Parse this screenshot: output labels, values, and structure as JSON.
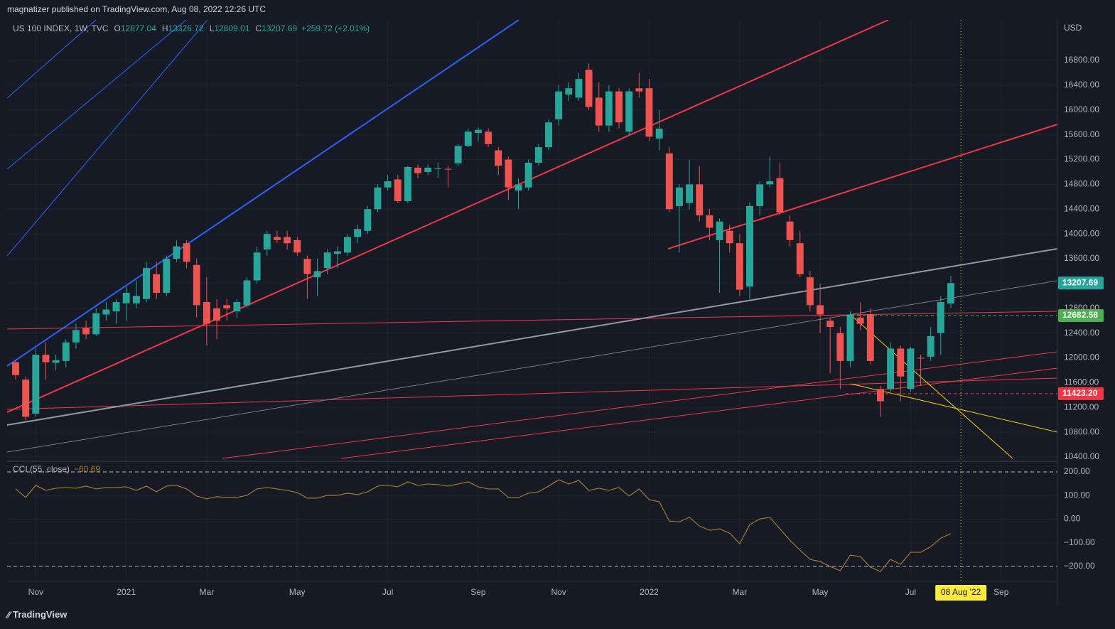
{
  "header": {
    "publisher": "magnatizer published on TradingView.com, Aug 08, 2022 12:26 UTC"
  },
  "footer": {
    "brand": "TradingView"
  },
  "chart_data": [
    {
      "type": "candlestick",
      "title": "US 100 INDEX, 1W, TVC",
      "ohlc_letters": [
        "O",
        "H",
        "L",
        "C"
      ],
      "change": "+259.72 (+2.01%)",
      "currency": "USD",
      "up_color": "#26a69a",
      "down_color": "#ef5350",
      "grid": true,
      "xlim": [
        -0.85,
        103.6
      ],
      "ylim": [
        10343,
        17454
      ],
      "yticks": [
        {
          "value": 10400,
          "label": "10400.00"
        },
        {
          "value": 10800,
          "label": "10800.00"
        },
        {
          "value": 11200,
          "label": "11200.00"
        },
        {
          "value": 11600,
          "label": "11600.00"
        },
        {
          "value": 12000,
          "label": "12000.00"
        },
        {
          "value": 12400,
          "label": "12400.00"
        },
        {
          "value": 12800,
          "label": "12800.00"
        },
        {
          "value": 13200,
          "label": "13200.00"
        },
        {
          "value": 13600,
          "label": "13600.00"
        },
        {
          "value": 14000,
          "label": "14000.00"
        },
        {
          "value": 14400,
          "label": "14400.00"
        },
        {
          "value": 14800,
          "label": "14800.00"
        },
        {
          "value": 15200,
          "label": "15200.00"
        },
        {
          "value": 15600,
          "label": "15600.00"
        },
        {
          "value": 16000,
          "label": "16000.00"
        },
        {
          "value": 16400,
          "label": "16400.00"
        },
        {
          "value": 16800,
          "label": "16800.00"
        }
      ],
      "price_lines": [
        {
          "value": 12682.58,
          "label": "12682.58",
          "color": "#4caf50"
        },
        {
          "value": 11423.2,
          "label": "11423.20",
          "color": "#f23645"
        }
      ],
      "open": [
        11930,
        11650,
        11100,
        12050,
        11920,
        11950,
        12250,
        12480,
        12380,
        12700,
        12750,
        12880,
        12880,
        12950,
        13350,
        13050,
        13600,
        13850,
        13500,
        12900,
        12800,
        12850,
        12750,
        12850,
        13250,
        13750,
        13950,
        13950,
        13900,
        13600,
        13300,
        13450,
        13680,
        13700,
        13950,
        14050,
        14400,
        14750,
        14880,
        14530,
        15070,
        15000,
        15050,
        15050,
        15140,
        15420,
        15630,
        15650,
        15350,
        15200,
        14700,
        14750,
        15150,
        15400,
        15850,
        16250,
        16200,
        16650,
        16200,
        15750,
        16300,
        15650,
        16350,
        16350,
        15540,
        15300,
        14450,
        14500,
        14800,
        14300,
        13900,
        14050,
        13850,
        13150,
        14450,
        14800,
        14900,
        14200,
        13850,
        13300,
        12850,
        12600,
        12400,
        11950,
        12650,
        12700,
        11500,
        11500,
        12150,
        11500,
        12000,
        12020,
        12400,
        12877.04
      ],
      "high": [
        11950,
        11700,
        12150,
        12250,
        12050,
        12300,
        12550,
        12600,
        12800,
        12900,
        12950,
        13150,
        13250,
        13550,
        13550,
        13650,
        13900,
        13900,
        13600,
        13300,
        12950,
        12950,
        12950,
        13300,
        13800,
        14050,
        14050,
        14050,
        13950,
        13650,
        13600,
        13750,
        13800,
        14000,
        14150,
        14450,
        14800,
        14950,
        14950,
        15100,
        15120,
        15120,
        15150,
        15100,
        15450,
        15700,
        15720,
        15700,
        15400,
        15250,
        14900,
        15200,
        15450,
        15850,
        16400,
        16450,
        16600,
        16750,
        16450,
        16400,
        16350,
        16350,
        16600,
        16500,
        16000,
        15400,
        14800,
        15200,
        15100,
        14400,
        14250,
        14150,
        14000,
        14500,
        14850,
        15250,
        15150,
        14300,
        14050,
        13400,
        13200,
        12650,
        12500,
        12750,
        12900,
        12800,
        11550,
        12250,
        12200,
        12180,
        12050,
        12500,
        13000,
        13326.72
      ],
      "low": [
        11650,
        10990,
        11050,
        11650,
        11800,
        11850,
        12150,
        12300,
        12350,
        12600,
        12550,
        12600,
        12800,
        12900,
        12950,
        13000,
        13550,
        13450,
        12650,
        12200,
        12300,
        12600,
        12650,
        12800,
        13200,
        13650,
        13850,
        13750,
        13650,
        12950,
        13000,
        13350,
        13450,
        13650,
        13850,
        14000,
        14350,
        14700,
        14500,
        14500,
        14900,
        14950,
        14900,
        14750,
        15100,
        15400,
        15500,
        15400,
        14950,
        14550,
        14400,
        14700,
        15100,
        15350,
        15750,
        16150,
        16150,
        16000,
        15650,
        15650,
        15700,
        15600,
        16200,
        15500,
        15350,
        14350,
        13700,
        14400,
        14200,
        13900,
        13050,
        13700,
        13000,
        12950,
        14300,
        14750,
        14300,
        13800,
        13300,
        12750,
        12400,
        11750,
        11500,
        11850,
        12450,
        11900,
        11050,
        11450,
        11300,
        11450,
        11550,
        11950,
        12050,
        12809.01
      ],
      "close": [
        11720,
        11050,
        12050,
        11930,
        11960,
        12250,
        12450,
        12380,
        12720,
        12780,
        12900,
        13050,
        13000,
        13450,
        13050,
        13600,
        13800,
        13550,
        12850,
        12550,
        12600,
        12800,
        12900,
        13250,
        13700,
        14000,
        13900,
        13850,
        13700,
        13350,
        13400,
        13700,
        13720,
        13950,
        14080,
        14400,
        14750,
        14850,
        14530,
        15080,
        14980,
        15070,
        15060,
        15040,
        15420,
        15650,
        15680,
        15450,
        15100,
        14750,
        14800,
        15150,
        15400,
        15800,
        16300,
        16350,
        16500,
        16050,
        15750,
        16300,
        15800,
        16300,
        16300,
        15570,
        15700,
        14400,
        14750,
        14800,
        14300,
        14100,
        14200,
        13850,
        13100,
        14450,
        14800,
        14850,
        14350,
        13900,
        13350,
        12850,
        12700,
        12500,
        11950,
        12700,
        12550,
        11950,
        11300,
        12150,
        11700,
        12150,
        11990,
        12350,
        12900,
        13207.69
      ]
    },
    {
      "type": "line",
      "title": "CCI (55, close)",
      "current_label": "−60.69",
      "color": "#a27a2e",
      "grid": true,
      "xlim": [
        -0.85,
        103.6
      ],
      "ylim": [
        -263,
        242
      ],
      "bands": [
        200,
        -200
      ],
      "yticks": [
        {
          "value": 200,
          "label": "200.00"
        },
        {
          "value": 100,
          "label": "100.00"
        },
        {
          "value": 0,
          "label": "0.00"
        },
        {
          "value": -100,
          "label": "−100.00"
        },
        {
          "value": -200,
          "label": "−200.00"
        }
      ],
      "xticks": [
        {
          "value": 2,
          "label": "Nov"
        },
        {
          "value": 11,
          "label": "2021"
        },
        {
          "value": 19,
          "label": "Mar"
        },
        {
          "value": 28,
          "label": "May"
        },
        {
          "value": 37,
          "label": "Jul"
        },
        {
          "value": 46,
          "label": "Sep"
        },
        {
          "value": 54,
          "label": "Nov"
        },
        {
          "value": 63,
          "label": "2022"
        },
        {
          "value": 72,
          "label": "Mar"
        },
        {
          "value": 80,
          "label": "May"
        },
        {
          "value": 89,
          "label": "Jul"
        },
        {
          "value": 98,
          "label": "Sep"
        }
      ],
      "crosshair": {
        "value": 94,
        "label": "08 Aug '22"
      },
      "values": [
        128,
        92,
        143,
        122,
        131,
        134,
        131,
        140,
        128,
        134,
        134,
        137,
        122,
        140,
        116,
        140,
        143,
        128,
        98,
        86,
        95,
        92,
        92,
        101,
        128,
        134,
        128,
        122,
        113,
        89,
        89,
        101,
        101,
        110,
        104,
        116,
        140,
        143,
        137,
        158,
        143,
        149,
        146,
        140,
        149,
        158,
        137,
        128,
        128,
        92,
        92,
        110,
        116,
        140,
        167,
        149,
        164,
        122,
        131,
        122,
        134,
        98,
        128,
        83,
        74,
        -8,
        -11,
        8,
        -29,
        -47,
        -41,
        -59,
        -104,
        -23,
        1,
        8,
        -41,
        -89,
        -131,
        -170,
        -179,
        -200,
        -218,
        -152,
        -158,
        -203,
        -221,
        -170,
        -191,
        -140,
        -140,
        -116,
        -80,
        -60.69
      ]
    }
  ]
}
